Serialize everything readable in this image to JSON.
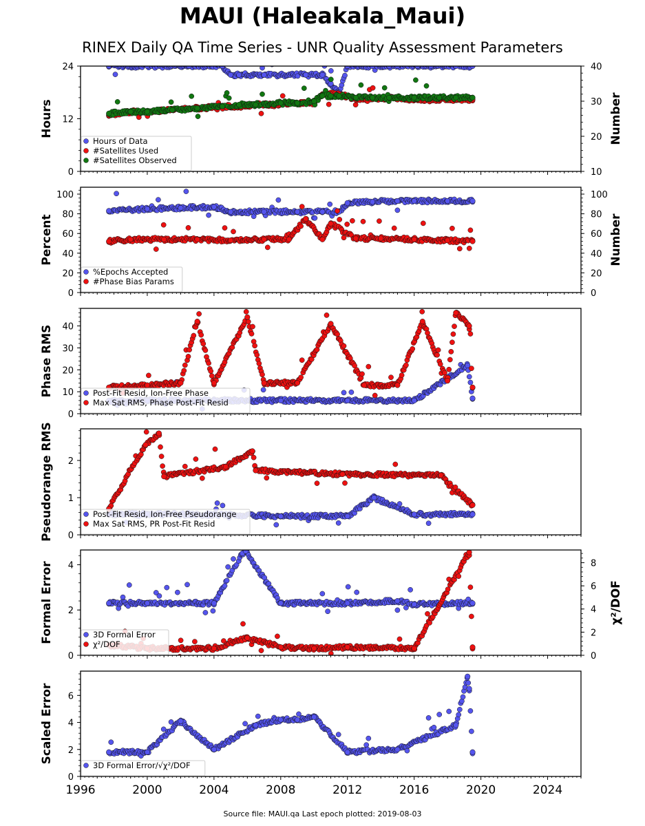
{
  "title": "MAUI (Haleakala_Maui)",
  "subtitle": "RINEX Daily QA Time Series - UNR Quality Assessment Parameters",
  "footer": "Source file: MAUI.qa Last epoch plotted: 2019-08-03",
  "colors": {
    "blue": "#5555ee",
    "red": "#ee1111",
    "green": "#117711",
    "edge": "#111111"
  },
  "chart_data": [
    {
      "type": "scatter",
      "ylabel": "Hours",
      "ylabel_right": "Number",
      "xlim": [
        1996,
        2026
      ],
      "ylim": [
        0,
        24
      ],
      "yticks": [
        0,
        12,
        24
      ],
      "ylim_right": [
        10,
        40
      ],
      "yticks_right": [
        10,
        20,
        30,
        40
      ],
      "xticks": [
        "1996",
        "2000",
        "2004",
        "2008",
        "2012",
        "2016",
        "2020",
        "2024"
      ],
      "legend_position": "lower-left",
      "series": [
        {
          "name": "Hours of Data",
          "color": "blue",
          "axis": "left",
          "x": [
            1997.7,
            2000,
            2002.5,
            2004.5,
            2005,
            2005.5,
            2007,
            2009.5,
            2010.5,
            2011,
            2011.5,
            2012,
            2013.5,
            2014.5,
            2015,
            2016.2,
            2017,
            2018.5,
            2019.5
          ],
          "y": [
            24,
            24,
            24,
            24,
            22,
            22,
            22,
            22,
            22,
            20,
            18,
            24,
            24,
            24,
            24,
            24,
            24,
            24,
            24
          ]
        },
        {
          "name": "#Satellites Used",
          "color": "red",
          "axis": "right",
          "x": [
            1997.7,
            1999,
            2000,
            2001.5,
            2003,
            2004.5,
            2005.5,
            2006.5,
            2008,
            2009,
            2010,
            2010.5,
            2011,
            2011.5,
            2012.5,
            2013.5,
            2014.5,
            2016,
            2017.5,
            2018.5,
            2019.5
          ],
          "y": [
            26,
            27,
            27,
            27.5,
            28,
            28.5,
            28.5,
            29,
            29,
            29.5,
            29.5,
            32,
            32,
            32,
            30.5,
            30.5,
            31,
            30.5,
            30.5,
            30.5,
            30.5
          ]
        },
        {
          "name": "#Satellites Observed",
          "color": "green",
          "axis": "right",
          "x": [
            1997.7,
            1999,
            2000,
            2001.5,
            2003,
            2004.5,
            2005.5,
            2006.5,
            2008,
            2009,
            2010,
            2010.5,
            2011,
            2011.5,
            2012.5,
            2013.5,
            2014.5,
            2016,
            2017.5,
            2018.5,
            2019.5
          ],
          "y": [
            26.5,
            27,
            27,
            27.5,
            28,
            28.5,
            29,
            29,
            29.5,
            29.5,
            30,
            31.5,
            31.5,
            31.5,
            31,
            31,
            31,
            31,
            31,
            31,
            31
          ]
        }
      ]
    },
    {
      "type": "scatter",
      "ylabel": "Percent",
      "ylabel_right": "Number",
      "xlim": [
        1996,
        2026
      ],
      "ylim": [
        0,
        107
      ],
      "yticks": [
        0,
        20,
        40,
        60,
        80,
        100
      ],
      "ylim_right": [
        0,
        107
      ],
      "yticks_right": [
        0,
        20,
        40,
        60,
        80,
        100
      ],
      "xticks": [
        "1996",
        "2000",
        "2004",
        "2008",
        "2012",
        "2016",
        "2020",
        "2024"
      ],
      "legend_position": "lower-left",
      "series": [
        {
          "name": "%Epochs Accepted",
          "color": "blue",
          "axis": "left",
          "x": [
            1997.7,
            2000,
            2002,
            2004,
            2005,
            2007,
            2009,
            2010.5,
            2011.5,
            2012,
            2013.5,
            2015,
            2016,
            2018,
            2019.5
          ],
          "y": [
            83,
            85,
            86,
            87,
            82,
            82,
            82,
            82,
            82,
            91,
            92,
            93,
            93,
            93,
            93
          ]
        },
        {
          "name": "#Phase Bias Params",
          "color": "red",
          "axis": "right",
          "x": [
            1997.7,
            1999,
            2001,
            2003,
            2005,
            2007,
            2008.5,
            2009.5,
            2010.5,
            2011,
            2012.5,
            2014,
            2016,
            2018,
            2019.5
          ],
          "y": [
            52,
            54,
            54,
            54,
            53,
            54,
            54,
            75,
            54,
            70,
            55,
            55,
            54,
            53,
            52
          ]
        }
      ]
    },
    {
      "type": "scatter",
      "ylabel": "Phase RMS",
      "xlim": [
        1996,
        2026
      ],
      "ylim": [
        0,
        48
      ],
      "yticks": [
        0,
        10,
        20,
        30,
        40
      ],
      "xticks": [
        "1996",
        "2000",
        "2004",
        "2008",
        "2012",
        "2016",
        "2020",
        "2024"
      ],
      "legend_position": "lower-left",
      "series": [
        {
          "name": "Post-Fit Resid, Ion-Free Phase",
          "color": "blue",
          "axis": "left",
          "x": [
            1997.7,
            2000,
            2004,
            2008,
            2012,
            2016,
            2019.2,
            2019.5
          ],
          "y": [
            6,
            6,
            6,
            6,
            6,
            6,
            22,
            7
          ]
        },
        {
          "name": "Max Sat RMS, Phase Post-Fit Resid",
          "color": "red",
          "axis": "left",
          "x": [
            1997.7,
            2000,
            2002,
            2003,
            2004,
            2006,
            2007,
            2009,
            2011,
            2013,
            2015,
            2016.5,
            2018,
            2018.5,
            2019.3,
            2019.5
          ],
          "y": [
            12,
            13,
            14,
            42,
            14,
            44,
            14,
            14,
            41,
            13,
            13,
            42,
            15,
            46,
            40,
            12
          ]
        }
      ]
    },
    {
      "type": "scatter",
      "ylabel": "Pseudorange RMS",
      "xlim": [
        1996,
        2026
      ],
      "ylim": [
        0,
        2.85
      ],
      "yticks": [
        0,
        1,
        2
      ],
      "xticks": [
        "1996",
        "2000",
        "2004",
        "2008",
        "2012",
        "2016",
        "2020",
        "2024"
      ],
      "legend_position": "lower-left",
      "series": [
        {
          "name": "Post-Fit Resid, Ion-Free Pseudorange",
          "color": "blue",
          "axis": "left",
          "x": [
            1997.7,
            2000,
            2004,
            2008,
            2012,
            2013.6,
            2016,
            2019.5
          ],
          "y": [
            0.55,
            0.55,
            0.55,
            0.5,
            0.5,
            1.0,
            0.55,
            0.55
          ]
        },
        {
          "name": "Max Sat RMS, PR Post-Fit Resid",
          "color": "red",
          "axis": "left",
          "x": [
            1997.7,
            1999.9,
            2000.7,
            2001,
            2004.7,
            2006.3,
            2006.5,
            2011.7,
            2017.6,
            2019.5
          ],
          "y": [
            0.7,
            2.42,
            2.73,
            1.57,
            1.83,
            2.25,
            1.73,
            1.63,
            1.6,
            0.8
          ]
        }
      ]
    },
    {
      "type": "scatter",
      "ylabel": "Formal Error",
      "ylabel_right": "χ²/DOF",
      "xlim": [
        1996,
        2026
      ],
      "ylim": [
        0,
        4.65
      ],
      "yticks": [
        0,
        2,
        4
      ],
      "ylim_right": [
        0,
        9.1
      ],
      "yticks_right": [
        0,
        2,
        4,
        6,
        8
      ],
      "xticks": [
        "1996",
        "2000",
        "2004",
        "2008",
        "2012",
        "2016",
        "2020",
        "2024"
      ],
      "legend_position": "lower-left",
      "series": [
        {
          "name": "3D Formal Error",
          "color": "blue",
          "axis": "left",
          "x": [
            1997.7,
            2000,
            2004,
            2005.7,
            2005.9,
            2008,
            2012,
            2015,
            2016,
            2019.5
          ],
          "y": [
            2.3,
            2.3,
            2.3,
            4.5,
            4.6,
            2.3,
            2.3,
            2.4,
            2.25,
            2.3
          ]
        },
        {
          "name": "χ²/DOF",
          "color": "red",
          "axis": "right",
          "x": [
            1997.7,
            2000,
            2004,
            2006,
            2008,
            2010,
            2012,
            2016,
            2019.3,
            2019.5
          ],
          "y": [
            0.9,
            0.6,
            0.6,
            1.5,
            0.7,
            0.6,
            0.7,
            0.6,
            8.9,
            0.7
          ]
        }
      ]
    },
    {
      "type": "scatter",
      "ylabel": "Scaled Error",
      "xlim": [
        1996,
        2026
      ],
      "ylim": [
        0,
        7.8
      ],
      "yticks": [
        0,
        2,
        4,
        6
      ],
      "xticks": [
        "1996",
        "2000",
        "2004",
        "2008",
        "2012",
        "2016",
        "2020",
        "2024"
      ],
      "legend_position": "lower-left",
      "series": [
        {
          "name": "3D Formal Error/√χ²/DOF",
          "color": "blue",
          "axis": "left",
          "x": [
            1997.7,
            2000,
            2002,
            2004,
            2006.5,
            2008,
            2009,
            2010,
            2012,
            2015,
            2018.5,
            2019.2,
            2019.3,
            2019.5
          ],
          "y": [
            1.8,
            1.8,
            4.1,
            2.0,
            3.8,
            4.2,
            4.2,
            4.4,
            1.8,
            2.0,
            3.8,
            7.4,
            6.5,
            1.8
          ]
        }
      ]
    }
  ]
}
